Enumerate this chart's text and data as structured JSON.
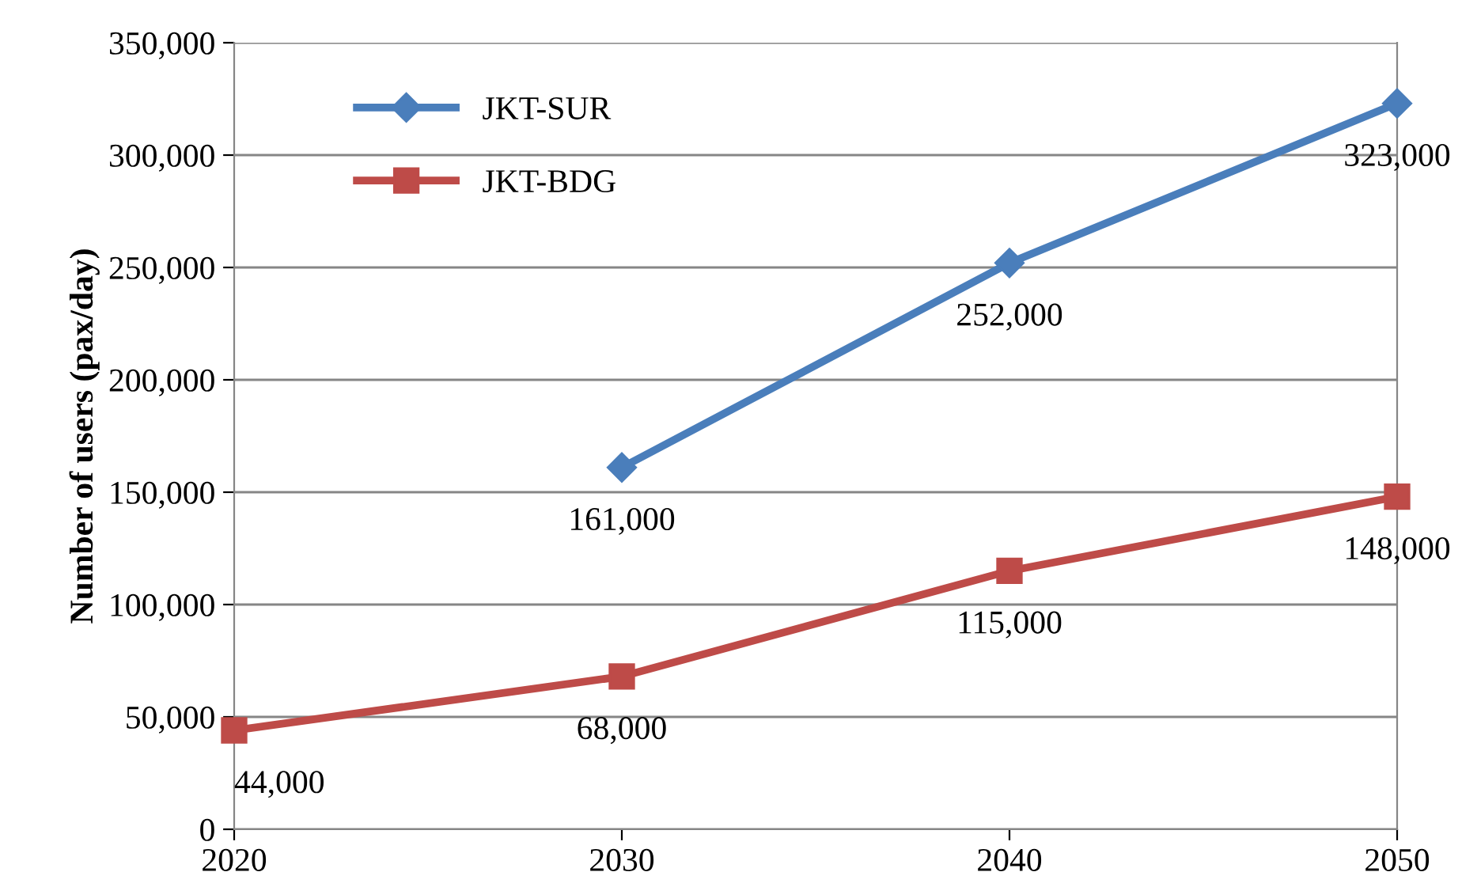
{
  "chart_data": {
    "type": "line",
    "ylabel": "Number of users (pax/day)",
    "xlim": [
      2020,
      2050
    ],
    "xticks": [
      2020,
      2030,
      2040,
      2050
    ],
    "ylim": [
      0,
      350000
    ],
    "yticks": [
      0,
      {
        "value": 50000,
        "label": "50,000"
      },
      {
        "value": 100000,
        "label": "100,000"
      },
      {
        "value": 150000,
        "label": "150,000"
      },
      {
        "value": 200000,
        "label": "200,000"
      },
      {
        "value": 250000,
        "label": "250,000"
      },
      {
        "value": 300000,
        "label": "300,000"
      },
      {
        "value": 350000,
        "label": "350,000"
      }
    ],
    "series": [
      {
        "name": "JKT-SUR",
        "color": "#4a7ebb",
        "marker": "diamond",
        "x": [
          2030,
          2040,
          2050
        ],
        "values": [
          161000,
          252000,
          323000
        ],
        "value_labels": [
          "161,000",
          "252,000",
          "323,000"
        ]
      },
      {
        "name": "JKT-BDG",
        "color": "#be4b48",
        "marker": "square",
        "x": [
          2020,
          2030,
          2040,
          2050
        ],
        "values": [
          44000,
          68000,
          115000,
          148000
        ],
        "value_labels": [
          "44,000",
          "68,000",
          "115,000",
          "148,000"
        ]
      }
    ],
    "grid": "y",
    "legend": "top left",
    "line_style": "solid"
  }
}
